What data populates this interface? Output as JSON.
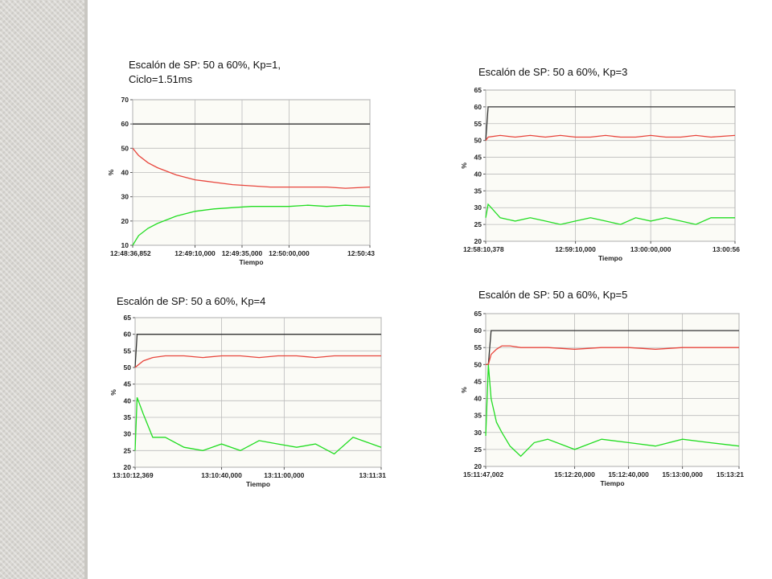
{
  "chart_data": [
    {
      "type": "line",
      "title": "Escalón de SP: 50 a 60%, Kp=1, Ciclo=1.51ms",
      "x_label": "Tiempo",
      "y_label": "%",
      "x": [
        46116.852,
        46120,
        46125,
        46130,
        46140,
        46150,
        46160,
        46170,
        46180,
        46190,
        46200,
        46210,
        46220,
        46230,
        46243
      ],
      "xlim": [
        46116.852,
        46243
      ],
      "xticks": [
        {
          "value": 46116.852,
          "label": "12:48:36,852"
        },
        {
          "value": 46150,
          "label": "12:49:10,000"
        },
        {
          "value": 46175,
          "label": "12:49:35,000"
        },
        {
          "value": 46200,
          "label": "12:50:00,000"
        },
        {
          "value": 46243,
          "label": "12:50:43"
        }
      ],
      "ylim": [
        10,
        70
      ],
      "yticks": [
        10,
        20,
        30,
        40,
        50,
        60,
        70
      ],
      "grid": true,
      "series": [
        {
          "color": "#333333",
          "values": [
            60,
            60,
            60,
            60,
            60,
            60,
            60,
            60,
            60,
            60,
            60,
            60,
            60,
            60,
            60
          ]
        },
        {
          "color": "#e8453c",
          "values": [
            50,
            47,
            44,
            42,
            39,
            37,
            36,
            35,
            34.5,
            34,
            34,
            34,
            34,
            33.5,
            34
          ]
        },
        {
          "color": "#22dd22",
          "values": [
            10,
            14,
            17,
            19,
            22,
            24,
            25,
            25.5,
            26,
            26,
            26,
            26.5,
            26,
            26.5,
            26
          ]
        }
      ]
    },
    {
      "type": "line",
      "title": "Escalón de SP: 50 a 60%, Kp=3",
      "x_label": "Tiempo",
      "y_label": "%",
      "x": [
        46690.378,
        46692,
        46700,
        46710,
        46720,
        46730,
        46740,
        46750,
        46760,
        46770,
        46780,
        46790,
        46800,
        46810,
        46820,
        46830,
        46840,
        46856
      ],
      "xlim": [
        46690.378,
        46856
      ],
      "xticks": [
        {
          "value": 46690.378,
          "label": "12:58:10,378"
        },
        {
          "value": 46750,
          "label": "12:59:10,000"
        },
        {
          "value": 46800,
          "label": "13:00:00,000"
        },
        {
          "value": 46856,
          "label": "13:00:56"
        }
      ],
      "ylim": [
        20,
        65
      ],
      "yticks": [
        20,
        25,
        30,
        35,
        40,
        45,
        50,
        55,
        60,
        65
      ],
      "grid": true,
      "series": [
        {
          "color": "#333333",
          "values": [
            50,
            60,
            60,
            60,
            60,
            60,
            60,
            60,
            60,
            60,
            60,
            60,
            60,
            60,
            60,
            60,
            60,
            60
          ]
        },
        {
          "color": "#e8453c",
          "values": [
            50,
            51,
            51.5,
            51,
            51.5,
            51,
            51.5,
            51,
            51,
            51.5,
            51,
            51,
            51.5,
            51,
            51,
            51.5,
            51,
            51.5
          ]
        },
        {
          "color": "#22dd22",
          "values": [
            27,
            31,
            27,
            26,
            27,
            26,
            25,
            26,
            27,
            26,
            25,
            27,
            26,
            27,
            26,
            25,
            27,
            27
          ]
        }
      ]
    },
    {
      "type": "line",
      "title": "Escalón de SP: 50 a 60%, Kp=4",
      "x_label": "Tiempo",
      "y_label": "%",
      "x": [
        47412.369,
        47413,
        47415,
        47418,
        47422,
        47428,
        47434,
        47440,
        47446,
        47452,
        47458,
        47464,
        47470,
        47476,
        47482,
        47491
      ],
      "xlim": [
        47412.369,
        47491
      ],
      "xticks": [
        {
          "value": 47412.369,
          "label": "13:10:12,369"
        },
        {
          "value": 47440,
          "label": "13:10:40,000"
        },
        {
          "value": 47460,
          "label": "13:11:00,000"
        },
        {
          "value": 47491,
          "label": "13:11:31"
        }
      ],
      "ylim": [
        20,
        65
      ],
      "yticks": [
        20,
        25,
        30,
        35,
        40,
        45,
        50,
        55,
        60,
        65
      ],
      "grid": true,
      "series": [
        {
          "color": "#333333",
          "values": [
            50,
            60,
            60,
            60,
            60,
            60,
            60,
            60,
            60,
            60,
            60,
            60,
            60,
            60,
            60,
            60
          ]
        },
        {
          "color": "#e8453c",
          "values": [
            50,
            50.5,
            52,
            53,
            53.5,
            53.5,
            53,
            53.5,
            53.5,
            53,
            53.5,
            53.5,
            53,
            53.5,
            53.5,
            53.5
          ]
        },
        {
          "color": "#22dd22",
          "values": [
            25,
            41,
            36,
            29,
            29,
            26,
            25,
            27,
            25,
            28,
            27,
            26,
            27,
            24,
            29,
            26
          ]
        }
      ]
    },
    {
      "type": "line",
      "title": "Escalón de SP: 50 a 60%, Kp=5",
      "x_label": "Tiempo",
      "y_label": "%",
      "x": [
        54707.002,
        54708,
        54709,
        54711,
        54713,
        54716,
        54720,
        54725,
        54730,
        54740,
        54750,
        54760,
        54770,
        54780,
        54790,
        54801
      ],
      "xlim": [
        54707.002,
        54801
      ],
      "xticks": [
        {
          "value": 54707.002,
          "label": "15:11:47,002"
        },
        {
          "value": 54740,
          "label": "15:12:20,000"
        },
        {
          "value": 54760,
          "label": "15:12:40,000"
        },
        {
          "value": 54780,
          "label": "15:13:00,000"
        },
        {
          "value": 54801,
          "label": "15:13:21"
        }
      ],
      "ylim": [
        20,
        65
      ],
      "yticks": [
        20,
        25,
        30,
        35,
        40,
        45,
        50,
        55,
        60,
        65
      ],
      "grid": true,
      "series": [
        {
          "color": "#333333",
          "values": [
            50,
            50,
            60,
            60,
            60,
            60,
            60,
            60,
            60,
            60,
            60,
            60,
            60,
            60,
            60,
            60
          ]
        },
        {
          "color": "#e8453c",
          "values": [
            50,
            50,
            53,
            54.5,
            55.5,
            55.5,
            55,
            55,
            55,
            54.5,
            55,
            55,
            54.5,
            55,
            55,
            55
          ]
        },
        {
          "color": "#22dd22",
          "values": [
            29,
            50,
            40,
            33,
            30,
            26,
            23,
            27,
            28,
            25,
            28,
            27,
            26,
            28,
            27,
            26
          ]
        }
      ]
    }
  ]
}
